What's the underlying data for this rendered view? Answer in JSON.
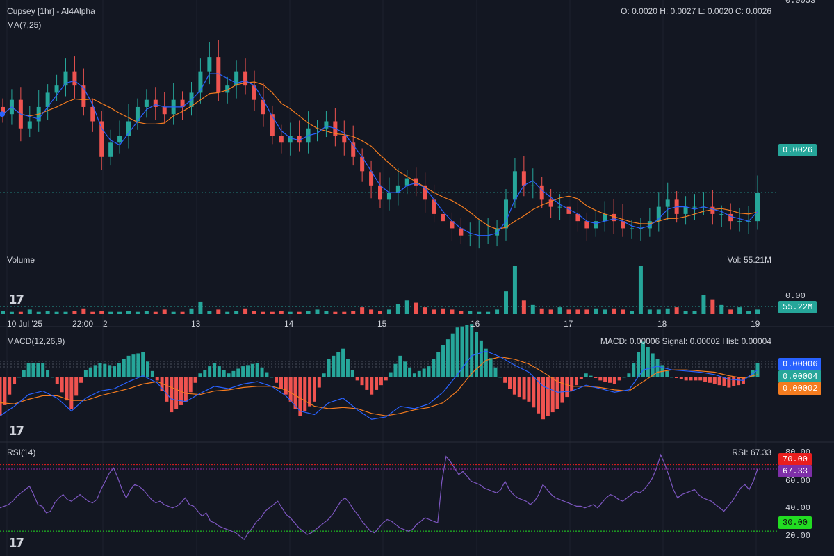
{
  "header": {
    "title": "Cupsey [1hr] - AI4Alpha",
    "ma_label": "MA(7,25)",
    "ohlc": "O: 0.0020 H: 0.0027 L: 0.0020 C: 0.0026",
    "top_axis_value": "0.0053"
  },
  "price_tag": "0.0026",
  "volume": {
    "label": "Volume",
    "stat": "Vol: 55.21M",
    "axis_zero": "0.00",
    "tag": "55.22M"
  },
  "dates": [
    "10 Jul '25",
    "22:00",
    "2",
    "13",
    "14",
    "15",
    "16",
    "17",
    "18",
    "19"
  ],
  "macd": {
    "label": "MACD(12,26,9)",
    "stat": "MACD: 0.00006 Signal: 0.00002 Hist: 0.00004",
    "tag_macd": "0.00006",
    "tag_hist": "0.00004",
    "tag_signal": "0.00002"
  },
  "rsi": {
    "label": "RSI(14)",
    "stat": "RSI: 67.33",
    "axis": [
      "80.00",
      "60.00",
      "40.00",
      "20.00"
    ],
    "tag_70": "70.00",
    "tag_value": "67.33",
    "tag_30": "30.00"
  },
  "colors": {
    "up": "#26a69a",
    "down": "#ef5350",
    "ma_fast": "#2962ff",
    "ma_slow": "#f57c1f",
    "rsi": "#7e57c2",
    "background": "#131722"
  },
  "chart_data": [
    {
      "type": "candlestick",
      "title": "Cupsey [1hr] - AI4Alpha",
      "indicators": [
        "MA(7,25)"
      ],
      "x_labels": [
        "10 Jul '25",
        "13",
        "14",
        "15",
        "16",
        "17",
        "18",
        "19"
      ],
      "close": [
        0.0037,
        0.0039,
        0.0035,
        0.0036,
        0.0038,
        0.004,
        0.0041,
        0.0043,
        0.0041,
        0.0038,
        0.0036,
        0.0031,
        0.0033,
        0.0034,
        0.0036,
        0.0038,
        0.0039,
        0.0038,
        0.0037,
        0.0039,
        0.0038,
        0.004,
        0.0043,
        0.0045,
        0.004,
        0.0041,
        0.0043,
        0.0041,
        0.0039,
        0.0037,
        0.0034,
        0.0033,
        0.0034,
        0.0033,
        0.0035,
        0.0035,
        0.0036,
        0.0034,
        0.0033,
        0.0031,
        0.0029,
        0.0027,
        0.0025,
        0.0026,
        0.0027,
        0.0028,
        0.0027,
        0.0025,
        0.0023,
        0.0022,
        0.0021,
        0.002,
        0.002,
        0.002,
        0.002,
        0.0021,
        0.0025,
        0.0029,
        0.0027,
        0.0027,
        0.0025,
        0.0024,
        0.0024,
        0.0023,
        0.0022,
        0.0021,
        0.0022,
        0.0023,
        0.0022,
        0.0021,
        0.0021,
        0.0021,
        0.0022,
        0.0024,
        0.0025,
        0.0023,
        0.0024,
        0.0024,
        0.0024,
        0.0023,
        0.0023,
        0.0022,
        0.0022,
        0.0022,
        0.0026
      ],
      "volume_max_ratio_note": "",
      "ylim": [
        0.0015,
        0.0053
      ]
    },
    {
      "type": "bar",
      "title": "Volume",
      "values": [
        3,
        2,
        2,
        4,
        2,
        3,
        2,
        2,
        3,
        5,
        2,
        3,
        2,
        2,
        3,
        2,
        3,
        2,
        4,
        2,
        2,
        5,
        11,
        3,
        4,
        2,
        3,
        5,
        3,
        2,
        2,
        3,
        2,
        2,
        3,
        4,
        3,
        2,
        2,
        3,
        6,
        4,
        3,
        4,
        9,
        12,
        10,
        6,
        4,
        5,
        4,
        3,
        3,
        2,
        2,
        4,
        20,
        42,
        12,
        8,
        5,
        4,
        6,
        4,
        4,
        4,
        5,
        4,
        5,
        4,
        3,
        42,
        4,
        4,
        5,
        6,
        3,
        3,
        17,
        13,
        8,
        4,
        6,
        3,
        4
      ]
    },
    {
      "type": "line",
      "title": "MACD(12,26,9)",
      "series": [
        {
          "name": "MACD",
          "values": [
            -0.00033,
            -0.00025,
            -0.00015,
            -0.00012,
            -0.00018,
            -0.00029,
            -0.00018,
            -0.00012,
            -0.0001,
            -4e-05,
            1e-05,
            -5e-05,
            -0.00019,
            -0.00021,
            -0.00014,
            -8e-05,
            -0.0001,
            -6e-05,
            -4e-05,
            -8e-05,
            -0.00016,
            -0.00029,
            -0.00032,
            -0.00022,
            -0.00018,
            -0.00028,
            -0.00036,
            -0.00034,
            -0.00025,
            -0.00027,
            -0.00023,
            -0.00013,
            2e-05,
            0.00018,
            0.00022,
            0.00017,
            0.0001,
            4e-05,
            -8e-05,
            -0.00013,
            -0.00012,
            -7e-05,
            -0.0001,
            -0.00013,
            -0.00011,
            6e-05,
            9e-05,
            6e-05,
            5e-05,
            4e-05,
            2e-05,
            -2e-05,
            -3e-05,
            6e-05
          ]
        },
        {
          "name": "Signal",
          "values": [
            -0.00022,
            -0.00023,
            -0.00019,
            -0.00016,
            -0.00016,
            -0.0002,
            -0.0002,
            -0.00016,
            -0.00013,
            -0.0001,
            -6e-05,
            -4e-05,
            -9e-05,
            -0.00014,
            -0.00015,
            -0.00012,
            -0.00011,
            -9e-05,
            -8e-05,
            -8e-05,
            -0.00011,
            -0.00018,
            -0.00025,
            -0.00027,
            -0.00026,
            -0.00027,
            -0.00031,
            -0.00033,
            -0.00031,
            -0.00028,
            -0.00026,
            -0.00022,
            -0.00012,
            3e-05,
            0.00014,
            0.00017,
            0.00015,
            0.00011,
            4e-05,
            -4e-05,
            -8e-05,
            -8e-05,
            -9e-05,
            -0.00011,
            -0.00012,
            -4e-05,
            4e-05,
            6e-05,
            6e-05,
            5e-05,
            4e-05,
            1e-05,
            -1e-05,
            2e-05
          ]
        }
      ]
    },
    {
      "type": "line",
      "title": "RSI(14)",
      "ylim": [
        15,
        82
      ],
      "series": [
        {
          "name": "RSI",
          "values": [
            44,
            45,
            46,
            48,
            51,
            53,
            55,
            57,
            52,
            46,
            45,
            41,
            42,
            47,
            50,
            52,
            49,
            48,
            50,
            52,
            50,
            48,
            47,
            49,
            55,
            60,
            65,
            68,
            62,
            55,
            50,
            55,
            58,
            57,
            55,
            52,
            49,
            47,
            48,
            46,
            45,
            44,
            45,
            47,
            50,
            46,
            45,
            42,
            39,
            41,
            36,
            35,
            33,
            32,
            31,
            30,
            29,
            27,
            25,
            29,
            32,
            36,
            38,
            42,
            44,
            46,
            48,
            44,
            40,
            38,
            35,
            32,
            30,
            28,
            29,
            31,
            33,
            35,
            37,
            40,
            44,
            48,
            50,
            47,
            43,
            40,
            36,
            33,
            30,
            29,
            32,
            35,
            37,
            36,
            34,
            32,
            31,
            30,
            31,
            34,
            36,
            38,
            37,
            36,
            35,
            60,
            75,
            72,
            68,
            64,
            66,
            63,
            60,
            59,
            58,
            56,
            55,
            54,
            53,
            55,
            60,
            55,
            52,
            50,
            49,
            48,
            46,
            48,
            52,
            58,
            55,
            52,
            50,
            49,
            48,
            47,
            46,
            45,
            45,
            44,
            45,
            46,
            44,
            47,
            50,
            52,
            51,
            49,
            48,
            50,
            52,
            54,
            53,
            55,
            58,
            62,
            68,
            76,
            70,
            63,
            55,
            50,
            52,
            53,
            54,
            55,
            52,
            50,
            49,
            48,
            46,
            44,
            42,
            45,
            48,
            52,
            56,
            58,
            55,
            60,
            67.33
          ]
        }
      ]
    }
  ]
}
